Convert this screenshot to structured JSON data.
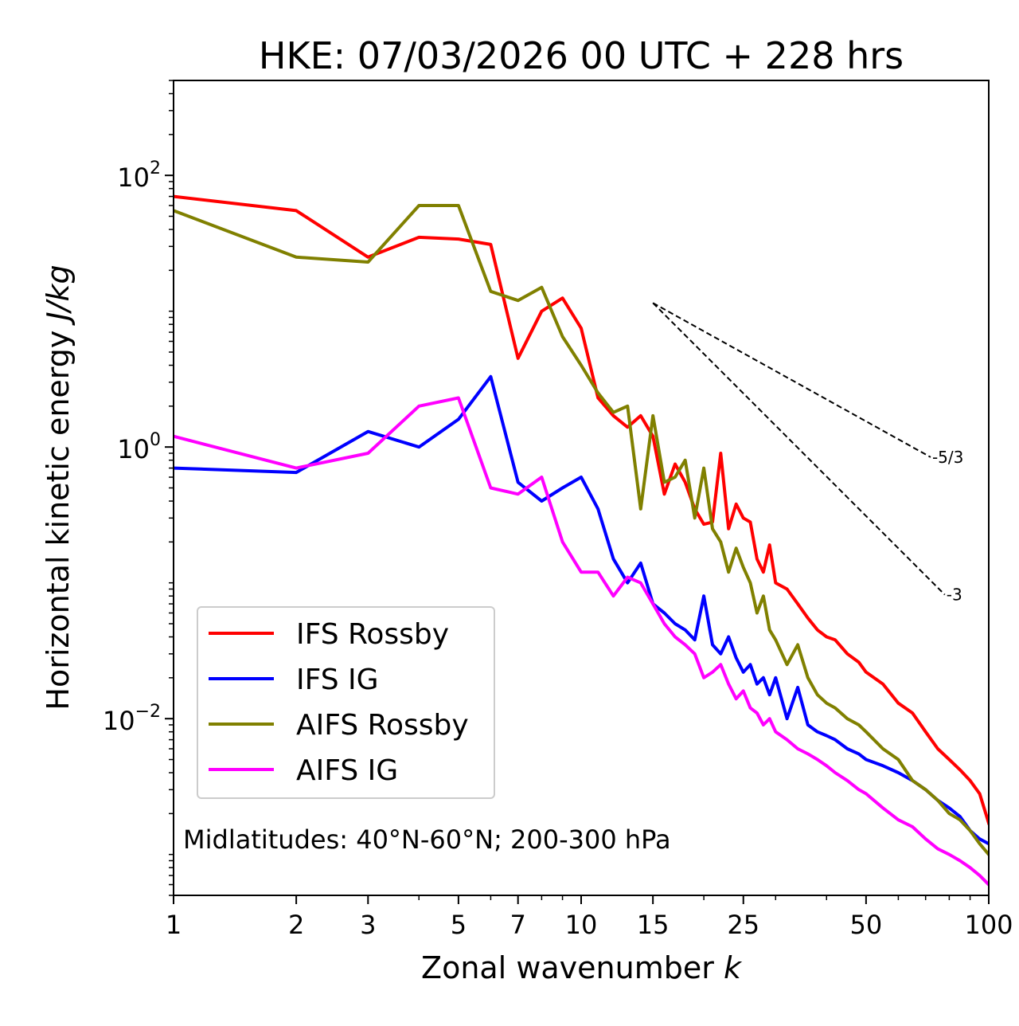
{
  "chart_data": {
    "type": "line",
    "title": "HKE: 07/03/2026 00 UTC + 228 hrs",
    "xlabel": "Zonal wavenumber",
    "xlabel_var": "k",
    "ylabel": "Horizontal kinetic energy",
    "ylabel_units": "J/kg",
    "xscale": "log",
    "yscale": "log",
    "xlim": [
      1,
      100
    ],
    "ylim": [
      0.0005,
      500
    ],
    "x_ticks": [
      1,
      2,
      3,
      5,
      7,
      10,
      15,
      25,
      50,
      100
    ],
    "x_tick_labels": [
      "1",
      "2",
      "3",
      "5",
      "7",
      "10",
      "15",
      "25",
      "50",
      "100"
    ],
    "y_ticks": [
      0.01,
      1,
      100
    ],
    "y_tick_labels": [
      {
        "base": "10",
        "exp": "−2"
      },
      {
        "base": "10",
        "exp": "0"
      },
      {
        "base": "10",
        "exp": "2"
      }
    ],
    "legend_position": "lower-left",
    "annotation": "Midlatitudes: 40°N-60°N; 200-300 hPa",
    "reference_lines": [
      {
        "label": "-5/3",
        "slope": -1.6667,
        "x_start": 15,
        "y_start": 11.5,
        "x_end": 72
      },
      {
        "label": "-3",
        "slope": -3,
        "x_start": 15,
        "y_start": 11.5,
        "x_end": 78
      }
    ],
    "series": [
      {
        "name": "IFS Rossby",
        "color": "#ff0000",
        "x": [
          1,
          2,
          3,
          4,
          5,
          6,
          7,
          8,
          9,
          10,
          11,
          12,
          13,
          14,
          15,
          16,
          17,
          18,
          19,
          20,
          21,
          22,
          23,
          24,
          25,
          26,
          27,
          28,
          29,
          30,
          32,
          34,
          36,
          38,
          40,
          42,
          45,
          48,
          50,
          55,
          60,
          65,
          70,
          75,
          80,
          85,
          90,
          95,
          100
        ],
        "y": [
          70,
          55,
          25,
          35,
          34,
          31,
          4.5,
          10,
          12.5,
          7.5,
          2.3,
          1.7,
          1.4,
          1.7,
          1.2,
          0.45,
          0.75,
          0.55,
          0.35,
          0.27,
          0.28,
          0.9,
          0.25,
          0.38,
          0.3,
          0.28,
          0.15,
          0.12,
          0.19,
          0.1,
          0.09,
          0.07,
          0.055,
          0.045,
          0.04,
          0.038,
          0.03,
          0.026,
          0.022,
          0.018,
          0.013,
          0.011,
          0.008,
          0.006,
          0.005,
          0.0042,
          0.0035,
          0.0028,
          0.0017
        ]
      },
      {
        "name": "IFS IG",
        "color": "#0000ff",
        "x": [
          1,
          2,
          3,
          4,
          5,
          6,
          7,
          8,
          9,
          10,
          11,
          12,
          13,
          14,
          15,
          16,
          17,
          18,
          19,
          20,
          21,
          22,
          23,
          24,
          25,
          26,
          27,
          28,
          29,
          30,
          32,
          34,
          36,
          38,
          40,
          42,
          45,
          48,
          50,
          55,
          60,
          65,
          70,
          75,
          80,
          85,
          90,
          95,
          100
        ],
        "y": [
          0.7,
          0.65,
          1.3,
          1.0,
          1.6,
          3.3,
          0.55,
          0.4,
          0.5,
          0.6,
          0.35,
          0.15,
          0.1,
          0.14,
          0.07,
          0.06,
          0.05,
          0.045,
          0.038,
          0.08,
          0.035,
          0.03,
          0.04,
          0.028,
          0.022,
          0.025,
          0.018,
          0.02,
          0.015,
          0.02,
          0.01,
          0.017,
          0.009,
          0.008,
          0.0075,
          0.007,
          0.006,
          0.0055,
          0.005,
          0.0045,
          0.004,
          0.0035,
          0.003,
          0.0025,
          0.0022,
          0.0019,
          0.0015,
          0.0013,
          0.0012
        ]
      },
      {
        "name": "AIFS Rossby",
        "color": "#808000",
        "x": [
          1,
          2,
          3,
          4,
          5,
          6,
          7,
          8,
          9,
          10,
          11,
          12,
          13,
          14,
          15,
          16,
          17,
          18,
          19,
          20,
          21,
          22,
          23,
          24,
          25,
          26,
          27,
          28,
          29,
          30,
          32,
          34,
          36,
          38,
          40,
          42,
          45,
          48,
          50,
          55,
          60,
          65,
          70,
          75,
          80,
          85,
          90,
          95,
          100
        ],
        "y": [
          55,
          25,
          23,
          60,
          60,
          14,
          12,
          15,
          6.5,
          4.0,
          2.5,
          1.8,
          2.0,
          0.35,
          1.7,
          0.55,
          0.6,
          0.8,
          0.3,
          0.7,
          0.25,
          0.2,
          0.12,
          0.18,
          0.13,
          0.1,
          0.06,
          0.08,
          0.045,
          0.038,
          0.025,
          0.035,
          0.02,
          0.015,
          0.013,
          0.012,
          0.01,
          0.009,
          0.008,
          0.006,
          0.005,
          0.0035,
          0.003,
          0.0025,
          0.002,
          0.0018,
          0.0015,
          0.0012,
          0.001
        ]
      },
      {
        "name": "AIFS IG",
        "color": "#ff00ff",
        "x": [
          1,
          2,
          3,
          4,
          5,
          6,
          7,
          8,
          9,
          10,
          11,
          12,
          13,
          14,
          15,
          16,
          17,
          18,
          19,
          20,
          21,
          22,
          23,
          24,
          25,
          26,
          27,
          28,
          29,
          30,
          32,
          34,
          36,
          38,
          40,
          42,
          45,
          48,
          50,
          55,
          60,
          65,
          70,
          75,
          80,
          85,
          90,
          95,
          100
        ],
        "y": [
          1.2,
          0.7,
          0.9,
          2.0,
          2.3,
          0.5,
          0.45,
          0.6,
          0.2,
          0.12,
          0.12,
          0.08,
          0.11,
          0.1,
          0.07,
          0.05,
          0.04,
          0.035,
          0.03,
          0.02,
          0.022,
          0.025,
          0.018,
          0.014,
          0.016,
          0.012,
          0.011,
          0.009,
          0.01,
          0.008,
          0.007,
          0.006,
          0.0055,
          0.005,
          0.0045,
          0.004,
          0.0035,
          0.003,
          0.0028,
          0.0022,
          0.0018,
          0.0016,
          0.0013,
          0.0011,
          0.001,
          0.0009,
          0.0008,
          0.0007,
          0.0006
        ]
      }
    ]
  }
}
